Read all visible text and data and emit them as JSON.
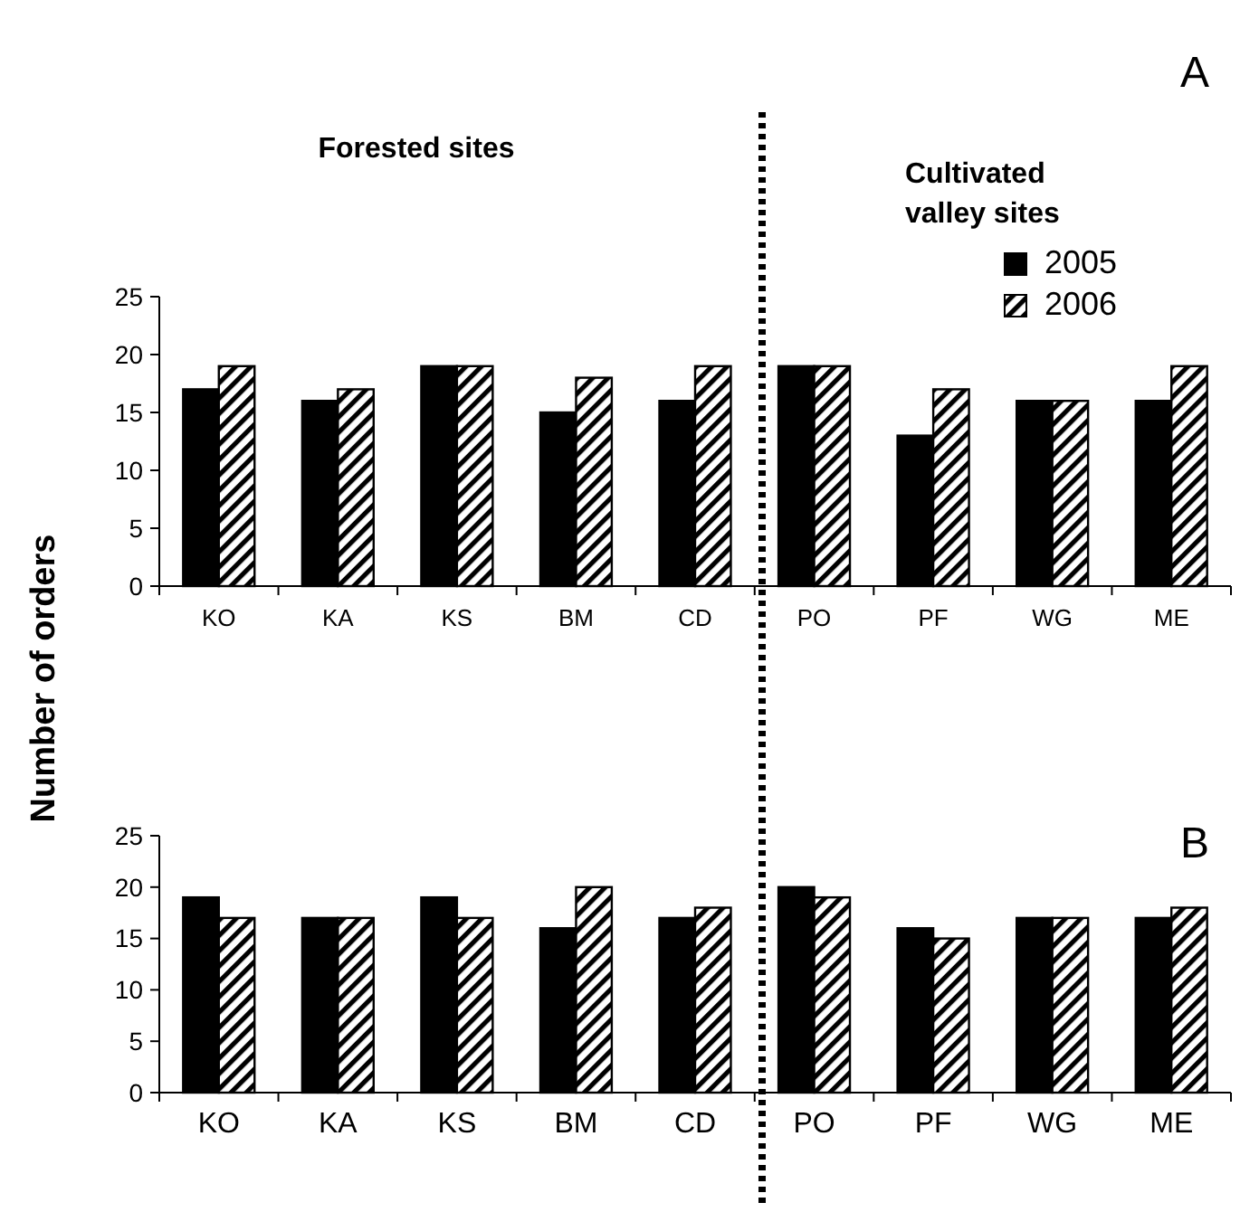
{
  "chart_data": [
    {
      "type": "bar",
      "title": "A",
      "ylabel": "Number of orders",
      "annotations": [
        "Forested sites",
        "Cultivated valley sites"
      ],
      "categories": [
        "KO",
        "KA",
        "KS",
        "BM",
        "CD",
        "PO",
        "PF",
        "WG",
        "ME"
      ],
      "series": [
        {
          "name": "2005",
          "color": "#000000",
          "values": [
            17,
            16,
            19,
            15,
            16,
            19,
            13,
            16,
            16
          ]
        },
        {
          "name": "2006",
          "color": "#000000",
          "values": [
            19,
            17,
            19,
            18,
            19,
            19,
            17,
            16,
            19
          ]
        }
      ],
      "ylim": [
        0,
        25
      ],
      "yticks": [
        0,
        5,
        10,
        15,
        20,
        25
      ],
      "legend": "top right"
    },
    {
      "type": "bar",
      "title": "B",
      "categories": [
        "KO",
        "KA",
        "KS",
        "BM",
        "CD",
        "PO",
        "PF",
        "WG",
        "ME"
      ],
      "series": [
        {
          "color": "#000000",
          "values": [
            19,
            17,
            19,
            16,
            17,
            20,
            16,
            17,
            17
          ]
        },
        {
          "color": "#000000",
          "values": [
            17,
            17,
            17,
            20,
            18,
            19,
            15,
            17,
            18
          ]
        }
      ],
      "ylim": [
        0,
        25
      ],
      "yticks": [
        0,
        5,
        10,
        15,
        20,
        25
      ]
    }
  ]
}
